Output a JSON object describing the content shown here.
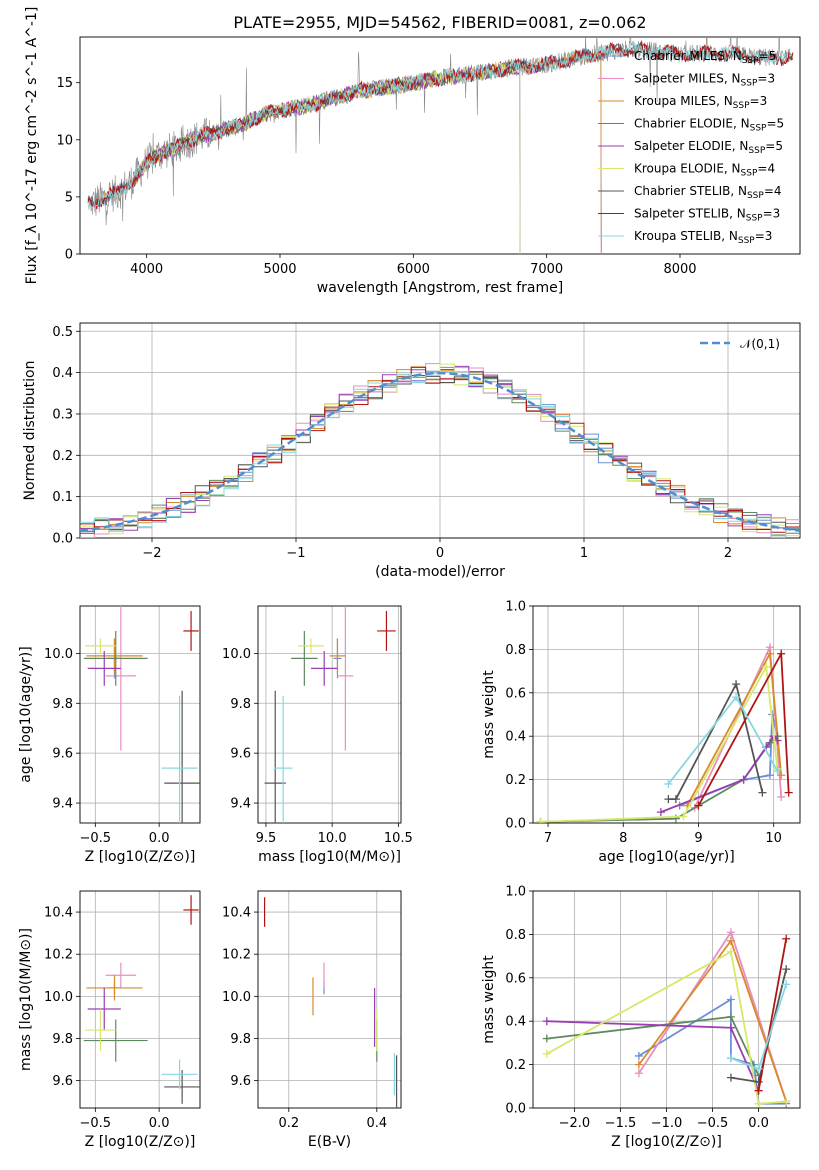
{
  "figure": {
    "title": "PLATE=2955, MJD=54562, FIBERID=0081, z=0.062"
  },
  "colors": {
    "Chabrier MILES": "#6a8fd8",
    "Salpeter MILES": "#e88fc0",
    "Kroupa MILES": "#d98a2a",
    "Chabrier ELODIE": "#5f8a5f",
    "Salpeter ELODIE": "#9a3fb3",
    "Kroupa ELODIE": "#d7e86a",
    "Chabrier STELIB": "#555555",
    "Salpeter STELIB": "#b01515",
    "Kroupa STELIB": "#86d8e0",
    "data": "#888888",
    "normal": "#4e8fd0",
    "grid": "#b0b0b0"
  },
  "chart_data": [
    {
      "id": "spectrum",
      "type": "line",
      "title": "PLATE=2955, MJD=54562, FIBERID=0081, z=0.062",
      "xlabel": "wavelength [Angstrom, rest frame]",
      "ylabel": "Flux [f_λ 10^-17 erg cm^-2 s^-1 A^-1]",
      "xlim": [
        3500,
        8900
      ],
      "ylim": [
        0,
        19
      ],
      "xticks": [
        4000,
        5000,
        6000,
        7000,
        8000
      ],
      "yticks": [
        0,
        5,
        10,
        15
      ],
      "grid": false,
      "legend_position": "right",
      "x": [
        3600,
        3700,
        3800,
        3900,
        4000,
        4100,
        4200,
        4300,
        4400,
        4500,
        4600,
        4700,
        4800,
        4900,
        5000,
        5200,
        5400,
        5600,
        5800,
        6000,
        6200,
        6400,
        6600,
        6800,
        7000,
        7200,
        7400,
        7600,
        7800,
        8000,
        8200,
        8400,
        8600
      ],
      "model_flux": [
        4.5,
        5.0,
        5.5,
        6.5,
        8.0,
        8.8,
        9.2,
        9.8,
        10.3,
        10.6,
        11.0,
        11.2,
        11.8,
        12.3,
        12.6,
        13.0,
        13.6,
        14.3,
        14.6,
        15.0,
        15.4,
        15.7,
        16.1,
        16.4,
        16.6,
        17.1,
        17.6,
        17.9,
        17.8,
        17.5,
        17.6,
        17.5,
        17.2
      ],
      "series_names": [
        "Chabrier MILES",
        "Salpeter MILES",
        "Kroupa MILES",
        "Chabrier ELODIE",
        "Salpeter ELODIE",
        "Kroupa ELODIE",
        "Chabrier STELIB",
        "Salpeter STELIB",
        "Kroupa STELIB"
      ],
      "n_ssp": [
        5,
        3,
        3,
        5,
        5,
        4,
        4,
        3,
        3
      ],
      "model_coverage": {
        "Chabrier MILES": [
          3540,
          7410
        ],
        "Salpeter MILES": [
          3540,
          7410
        ],
        "Kroupa MILES": [
          3540,
          7410
        ],
        "Chabrier ELODIE": [
          3900,
          6800
        ],
        "Salpeter ELODIE": [
          3900,
          6800
        ],
        "Kroupa ELODIE": [
          3900,
          6800
        ],
        "Chabrier STELIB": [
          3200,
          9300
        ],
        "Salpeter STELIB": [
          3200,
          9300
        ],
        "Kroupa STELIB": [
          3200,
          9300
        ]
      }
    },
    {
      "id": "residuals",
      "type": "line",
      "xlabel": "(data-model)/error",
      "ylabel": "Normed distribution",
      "xlim": [
        -2.5,
        2.5
      ],
      "ylim": [
        0,
        0.52
      ],
      "xticks": [
        -2,
        -1,
        0,
        1,
        2
      ],
      "xtick_labels": [
        "−2",
        "−1",
        "0",
        "1",
        "2"
      ],
      "yticks": [
        0.0,
        0.1,
        0.2,
        0.3,
        0.4,
        0.5
      ],
      "ytick_labels": [
        "0.0",
        "0.1",
        "0.2",
        "0.3",
        "0.4",
        "0.5"
      ],
      "grid": true,
      "legend_position": "top-right",
      "legend_label": "𝒩(0,1)",
      "bin_width": 0.1
    },
    {
      "id": "age_vs_Z",
      "type": "scatter",
      "xlabel": "Z [log10(Z/Z⊙)]",
      "ylabel": "age [log10(age/yr)]",
      "xlim": [
        -0.62,
        0.32
      ],
      "ylim": [
        9.32,
        10.19
      ],
      "xticks": [
        -0.5,
        0.0
      ],
      "xtick_labels": [
        "−0.5",
        "0.0"
      ],
      "yticks": [
        9.4,
        9.6,
        9.8,
        10.0
      ],
      "ytick_labels": [
        "9.4",
        "9.6",
        "9.8",
        "10.0"
      ],
      "grid": true,
      "points": [
        {
          "name": "Chabrier MILES",
          "x": -0.35,
          "xerr": 0.05,
          "y": 9.98,
          "yerr": 0.08
        },
        {
          "name": "Salpeter MILES",
          "x": -0.3,
          "xerr": 0.12,
          "y": 9.91,
          "yerr": 0.3
        },
        {
          "name": "Kroupa MILES",
          "x": -0.35,
          "xerr": 0.22,
          "y": 9.99,
          "yerr": 0.07
        },
        {
          "name": "Chabrier ELODIE",
          "x": -0.34,
          "xerr": 0.25,
          "y": 9.98,
          "yerr": 0.11
        },
        {
          "name": "Salpeter ELODIE",
          "x": -0.43,
          "xerr": 0.13,
          "y": 9.94,
          "yerr": 0.07
        },
        {
          "name": "Kroupa ELODIE",
          "x": -0.46,
          "xerr": 0.12,
          "y": 10.03,
          "yerr": 0.03
        },
        {
          "name": "Chabrier STELIB",
          "x": 0.18,
          "xerr": 0.14,
          "y": 9.48,
          "yerr": 0.37
        },
        {
          "name": "Salpeter STELIB",
          "x": 0.25,
          "xerr": 0.06,
          "y": 10.09,
          "yerr": 0.08
        },
        {
          "name": "Kroupa STELIB",
          "x": 0.16,
          "xerr": 0.14,
          "y": 9.54,
          "yerr": 0.29
        }
      ]
    },
    {
      "id": "age_vs_mass",
      "type": "scatter",
      "xlabel": "mass [log10(M/M⊙)]",
      "xlim": [
        9.44,
        10.52
      ],
      "ylim": [
        9.32,
        10.19
      ],
      "xticks": [
        9.5,
        10.0,
        10.5
      ],
      "xtick_labels": [
        "9.5",
        "10.0",
        "10.5"
      ],
      "yticks": [
        9.4,
        9.6,
        9.8,
        10.0
      ],
      "ytick_labels": [
        "9.4",
        "9.6",
        "9.8",
        "10.0"
      ],
      "grid": true,
      "points": [
        {
          "name": "Chabrier MILES",
          "x": 10.04,
          "xerr": 0.03,
          "y": 9.98,
          "yerr": 0.08
        },
        {
          "name": "Salpeter MILES",
          "x": 10.1,
          "xerr": 0.06,
          "y": 9.91,
          "yerr": 0.3
        },
        {
          "name": "Kroupa MILES",
          "x": 10.04,
          "xerr": 0.06,
          "y": 9.99,
          "yerr": 0.07
        },
        {
          "name": "Chabrier ELODIE",
          "x": 9.79,
          "xerr": 0.1,
          "y": 9.98,
          "yerr": 0.11
        },
        {
          "name": "Salpeter ELODIE",
          "x": 9.94,
          "xerr": 0.1,
          "y": 9.94,
          "yerr": 0.07
        },
        {
          "name": "Kroupa ELODIE",
          "x": 9.84,
          "xerr": 0.1,
          "y": 10.03,
          "yerr": 0.03
        },
        {
          "name": "Chabrier STELIB",
          "x": 9.57,
          "xerr": 0.08,
          "y": 9.48,
          "yerr": 0.37
        },
        {
          "name": "Salpeter STELIB",
          "x": 10.41,
          "xerr": 0.07,
          "y": 10.09,
          "yerr": 0.08
        },
        {
          "name": "Kroupa STELIB",
          "x": 9.63,
          "xerr": 0.07,
          "y": 9.54,
          "yerr": 0.29
        }
      ]
    },
    {
      "id": "weights_vs_age",
      "type": "line",
      "xlabel": "age [log10(age/yr)]",
      "ylabel": "mass weight",
      "xlim": [
        6.8,
        10.35
      ],
      "ylim": [
        0,
        1
      ],
      "xticks": [
        7,
        8,
        9,
        10
      ],
      "xtick_labels": [
        "7",
        "8",
        "9",
        "10"
      ],
      "yticks": [
        0.0,
        0.2,
        0.4,
        0.6,
        0.8,
        1.0
      ],
      "ytick_labels": [
        "0.0",
        "0.2",
        "0.4",
        "0.6",
        "0.8",
        "1.0"
      ],
      "grid": true,
      "series": [
        {
          "name": "Chabrier MILES",
          "x": [
            8.75,
            9.6,
            9.95,
            9.98,
            10.05
          ],
          "y": [
            0.08,
            0.2,
            0.22,
            0.5,
            0.4
          ]
        },
        {
          "name": "Salpeter MILES",
          "x": [
            8.95,
            9.95,
            10.1
          ],
          "y": [
            0.07,
            0.81,
            0.12
          ]
        },
        {
          "name": "Kroupa MILES",
          "x": [
            8.85,
            9.95,
            10.1
          ],
          "y": [
            0.08,
            0.78,
            0.22
          ]
        },
        {
          "name": "Chabrier ELODIE",
          "x": [
            6.9,
            8.7,
            9.6,
            9.95,
            10.05
          ],
          "y": [
            0.005,
            0.02,
            0.2,
            0.37,
            0.4
          ]
        },
        {
          "name": "Salpeter ELODIE",
          "x": [
            8.5,
            9.6,
            9.9,
            10.0,
            10.05
          ],
          "y": [
            0.05,
            0.2,
            0.35,
            0.4,
            0.38
          ]
        },
        {
          "name": "Kroupa ELODIE",
          "x": [
            6.9,
            8.8,
            9.9,
            10.05
          ],
          "y": [
            0.005,
            0.03,
            0.72,
            0.25
          ]
        },
        {
          "name": "Chabrier STELIB",
          "x": [
            8.6,
            8.7,
            9.5,
            9.85
          ],
          "y": [
            0.11,
            0.11,
            0.64,
            0.14
          ]
        },
        {
          "name": "Salpeter STELIB",
          "x": [
            9.0,
            10.1,
            10.2
          ],
          "y": [
            0.08,
            0.78,
            0.14
          ]
        },
        {
          "name": "Kroupa STELIB",
          "x": [
            8.6,
            9.5,
            10.05
          ],
          "y": [
            0.18,
            0.58,
            0.24
          ]
        }
      ]
    },
    {
      "id": "mass_vs_Z",
      "type": "scatter",
      "xlabel": "Z [log10(Z/Z⊙)]",
      "ylabel": "mass [log10(M/M⊙)]",
      "xlim": [
        -0.62,
        0.32
      ],
      "ylim": [
        9.47,
        10.5
      ],
      "xticks": [
        -0.5,
        0.0
      ],
      "xtick_labels": [
        "−0.5",
        "0.0"
      ],
      "yticks": [
        9.6,
        9.8,
        10.0,
        10.2,
        10.4
      ],
      "ytick_labels": [
        "9.6",
        "9.8",
        "10.0",
        "10.2",
        "10.4"
      ],
      "grid": true,
      "points": [
        {
          "name": "Chabrier MILES",
          "x": -0.35,
          "xerr": 0.05,
          "y": 10.04,
          "yerr": 0.03
        },
        {
          "name": "Salpeter MILES",
          "x": -0.3,
          "xerr": 0.12,
          "y": 10.1,
          "yerr": 0.06
        },
        {
          "name": "Kroupa MILES",
          "x": -0.35,
          "xerr": 0.22,
          "y": 10.04,
          "yerr": 0.06
        },
        {
          "name": "Chabrier ELODIE",
          "x": -0.34,
          "xerr": 0.25,
          "y": 9.79,
          "yerr": 0.1
        },
        {
          "name": "Salpeter ELODIE",
          "x": -0.43,
          "xerr": 0.13,
          "y": 9.94,
          "yerr": 0.1
        },
        {
          "name": "Kroupa ELODIE",
          "x": -0.46,
          "xerr": 0.12,
          "y": 9.84,
          "yerr": 0.1
        },
        {
          "name": "Chabrier STELIB",
          "x": 0.18,
          "xerr": 0.14,
          "y": 9.57,
          "yerr": 0.08
        },
        {
          "name": "Salpeter STELIB",
          "x": 0.25,
          "xerr": 0.06,
          "y": 10.41,
          "yerr": 0.07
        },
        {
          "name": "Kroupa STELIB",
          "x": 0.16,
          "xerr": 0.14,
          "y": 9.63,
          "yerr": 0.07
        }
      ]
    },
    {
      "id": "mass_vs_EBV",
      "type": "scatter",
      "xlabel": "E(B-V)",
      "xlim": [
        0.13,
        0.455
      ],
      "ylim": [
        9.47,
        10.5
      ],
      "xticks": [
        0.2,
        0.4
      ],
      "xtick_labels": [
        "0.2",
        "0.4"
      ],
      "yticks": [
        9.6,
        9.8,
        10.0,
        10.2,
        10.4
      ],
      "ytick_labels": [
        "9.6",
        "9.8",
        "10.0",
        "10.2",
        "10.4"
      ],
      "grid": true,
      "points": [
        {
          "name": "Chabrier MILES",
          "x": 0.28,
          "xerr": 0.0,
          "y": 10.04,
          "yerr": 0.03
        },
        {
          "name": "Salpeter MILES",
          "x": 0.28,
          "xerr": 0.0,
          "y": 10.1,
          "yerr": 0.06
        },
        {
          "name": "Kroupa MILES",
          "x": 0.255,
          "xerr": 0.0,
          "y": 10.0,
          "yerr": 0.09
        },
        {
          "name": "Chabrier ELODIE",
          "x": 0.4,
          "xerr": 0.0,
          "y": 9.79,
          "yerr": 0.1
        },
        {
          "name": "Salpeter ELODIE",
          "x": 0.395,
          "xerr": 0.0,
          "y": 9.9,
          "yerr": 0.14
        },
        {
          "name": "Kroupa ELODIE",
          "x": 0.4,
          "xerr": 0.0,
          "y": 9.84,
          "yerr": 0.1
        },
        {
          "name": "Chabrier STELIB",
          "x": 0.445,
          "xerr": 0.0,
          "y": 9.57,
          "yerr": 0.15
        },
        {
          "name": "Salpeter STELIB",
          "x": 0.145,
          "xerr": 0.0,
          "y": 10.4,
          "yerr": 0.07
        },
        {
          "name": "Kroupa STELIB",
          "x": 0.44,
          "xerr": 0.0,
          "y": 9.63,
          "yerr": 0.1
        }
      ]
    },
    {
      "id": "weights_vs_Z",
      "type": "line",
      "xlabel": "Z [log10(Z/Z⊙)]",
      "ylabel": "mass weight",
      "xlim": [
        -2.45,
        0.45
      ],
      "ylim": [
        0,
        1
      ],
      "xticks": [
        -2.0,
        -1.5,
        -1.0,
        -0.5,
        0.0
      ],
      "xtick_labels": [
        "−2.0",
        "−1.5",
        "−1.0",
        "−0.5",
        "0.0"
      ],
      "yticks": [
        0.0,
        0.2,
        0.4,
        0.6,
        0.8,
        1.0
      ],
      "ytick_labels": [
        "0.0",
        "0.2",
        "0.4",
        "0.6",
        "0.8",
        "1.0"
      ],
      "grid": true,
      "series": [
        {
          "name": "Chabrier MILES",
          "x": [
            -1.3,
            -0.3,
            -0.3,
            -0.05,
            0.0,
            0.3
          ],
          "y": [
            0.24,
            0.5,
            0.23,
            0.2,
            0.02,
            0.02
          ]
        },
        {
          "name": "Salpeter MILES",
          "x": [
            -1.3,
            -0.3,
            0.3
          ],
          "y": [
            0.16,
            0.81,
            0.03
          ]
        },
        {
          "name": "Kroupa MILES",
          "x": [
            -1.3,
            -0.3,
            0.3
          ],
          "y": [
            0.2,
            0.77,
            0.03
          ]
        },
        {
          "name": "Chabrier ELODIE",
          "x": [
            -2.3,
            -0.3,
            0.0
          ],
          "y": [
            0.32,
            0.42,
            0.15
          ]
        },
        {
          "name": "Salpeter ELODIE",
          "x": [
            -2.3,
            -0.3,
            0.0
          ],
          "y": [
            0.4,
            0.37,
            0.08
          ]
        },
        {
          "name": "Kroupa ELODIE",
          "x": [
            -2.3,
            -0.3,
            0.0,
            0.3
          ],
          "y": [
            0.25,
            0.72,
            0.02,
            0.03
          ]
        },
        {
          "name": "Chabrier STELIB",
          "x": [
            -0.3,
            0.0,
            0.3
          ],
          "y": [
            0.14,
            0.12,
            0.64
          ]
        },
        {
          "name": "Salpeter STELIB",
          "x": [
            0.0,
            0.3
          ],
          "y": [
            0.08,
            0.78
          ]
        },
        {
          "name": "Kroupa STELIB",
          "x": [
            -0.3,
            0.0,
            0.3
          ],
          "y": [
            0.23,
            0.18,
            0.57
          ]
        }
      ]
    }
  ]
}
